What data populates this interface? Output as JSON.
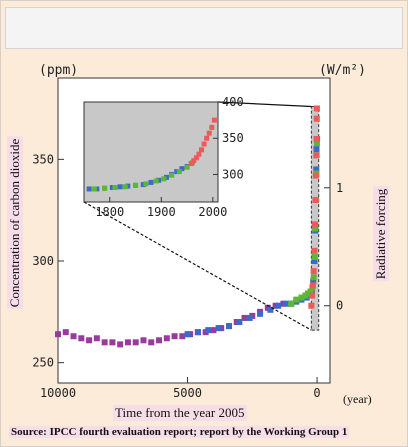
{
  "chart_data": {
    "type": "scatter",
    "left_unit": "(ppm)",
    "right_unit": "(W/m²)",
    "ylabel": "Concentration of carbon dioxide",
    "ylabel_right": "Radiative forcing",
    "xlabel": "Time from the year 2005",
    "xunit": "(year)",
    "source": "Source: IPCC fourth evaluation report; report by the Working Group 1",
    "xlim": [
      10000,
      -500
    ],
    "ylim": [
      240,
      390
    ],
    "x_ticks": [
      10000,
      5000,
      0
    ],
    "x_tick_labels": [
      "10000",
      "5000",
      "0"
    ],
    "y_ticks": [
      250,
      300,
      350
    ],
    "y_tick_labels": [
      "250",
      "300",
      "350"
    ],
    "y_right_ticks": [
      {
        "label": "0",
        "ppm": 278
      },
      {
        "label": "1",
        "ppm": 336
      }
    ],
    "colors": {
      "purple": "#9a3a9e",
      "blue": "#3c6ac8",
      "green": "#5cb832",
      "red": "#ee5a5a",
      "inset_bg": "#c8c8c8"
    },
    "series": [
      {
        "color_key": "purple",
        "points": [
          [
            10000,
            264
          ],
          [
            9700,
            265
          ],
          [
            9400,
            263
          ],
          [
            9100,
            262
          ],
          [
            8800,
            261
          ],
          [
            8500,
            262
          ],
          [
            8200,
            260
          ],
          [
            7900,
            260
          ],
          [
            7600,
            259
          ],
          [
            7300,
            260
          ],
          [
            7000,
            260
          ],
          [
            6700,
            261
          ],
          [
            6400,
            260
          ],
          [
            6100,
            261
          ],
          [
            5800,
            262
          ],
          [
            5500,
            263
          ],
          [
            5200,
            263
          ],
          [
            4900,
            264
          ],
          [
            4600,
            265
          ],
          [
            4300,
            265
          ],
          [
            4000,
            266
          ],
          [
            3700,
            267
          ],
          [
            3400,
            268
          ],
          [
            3100,
            270
          ],
          [
            2800,
            272
          ],
          [
            2500,
            273
          ],
          [
            2200,
            275
          ],
          [
            1900,
            277
          ],
          [
            1600,
            278
          ],
          [
            1300,
            279
          ],
          [
            1000,
            279
          ]
        ]
      },
      {
        "color_key": "blue",
        "points": [
          [
            5000,
            264
          ],
          [
            4600,
            265
          ],
          [
            4200,
            266
          ],
          [
            3800,
            267
          ],
          [
            3400,
            268
          ],
          [
            3000,
            270
          ],
          [
            2600,
            272
          ],
          [
            2200,
            274
          ],
          [
            1800,
            276
          ],
          [
            1500,
            278
          ],
          [
            1200,
            279
          ],
          [
            1000,
            279
          ],
          [
            800,
            280
          ],
          [
            600,
            281
          ],
          [
            400,
            282
          ],
          [
            300,
            283
          ],
          [
            200,
            285
          ],
          [
            150,
            290
          ],
          [
            100,
            300
          ],
          [
            70,
            315
          ],
          [
            50,
            330
          ],
          [
            30,
            345
          ],
          [
            20,
            355
          ],
          [
            0,
            360
          ]
        ]
      },
      {
        "color_key": "green",
        "points": [
          [
            1000,
            279
          ],
          [
            800,
            281
          ],
          [
            600,
            282
          ],
          [
            450,
            283
          ],
          [
            350,
            284
          ],
          [
            250,
            285
          ],
          [
            180,
            287
          ],
          [
            130,
            292
          ],
          [
            90,
            302
          ],
          [
            60,
            316
          ],
          [
            40,
            330
          ],
          [
            25,
            343
          ],
          [
            15,
            352
          ],
          [
            5,
            358
          ]
        ]
      },
      {
        "color_key": "red",
        "points": [
          [
            220,
            278
          ],
          [
            190,
            283
          ],
          [
            160,
            288
          ],
          [
            130,
            295
          ],
          [
            100,
            305
          ],
          [
            80,
            318
          ],
          [
            60,
            330
          ],
          [
            45,
            342
          ],
          [
            30,
            352
          ],
          [
            20,
            360
          ],
          [
            10,
            370
          ],
          [
            5,
            375
          ]
        ]
      }
    ],
    "inset": {
      "xlim": [
        1750,
        2010
      ],
      "ylim": [
        262,
        400
      ],
      "x_ticks": [
        1800,
        1900,
        2000
      ],
      "x_tick_labels": [
        "1800",
        "1900",
        "2000"
      ],
      "y_ticks": [
        300,
        350,
        400
      ],
      "y_tick_labels": [
        "300",
        "350",
        "400"
      ],
      "series": [
        {
          "color_key": "blue",
          "points": [
            [
              1760,
              280
            ],
            [
              1775,
              280
            ],
            [
              1790,
              281
            ],
            [
              1805,
              282
            ],
            [
              1820,
              283
            ],
            [
              1835,
              284
            ],
            [
              1850,
              285
            ],
            [
              1865,
              286
            ],
            [
              1880,
              289
            ],
            [
              1895,
              292
            ],
            [
              1910,
              296
            ],
            [
              1920,
              300
            ],
            [
              1930,
              304
            ],
            [
              1940,
              308
            ],
            [
              1950,
              311
            ]
          ]
        },
        {
          "color_key": "green",
          "points": [
            [
              1770,
              280
            ],
            [
              1790,
              281
            ],
            [
              1810,
              282
            ],
            [
              1830,
              283
            ],
            [
              1850,
              285
            ],
            [
              1870,
              287
            ],
            [
              1890,
              291
            ],
            [
              1905,
              294
            ],
            [
              1920,
              299
            ],
            [
              1935,
              304
            ],
            [
              1950,
              310
            ],
            [
              1960,
              316
            ]
          ]
        },
        {
          "color_key": "red",
          "points": [
            [
              1958,
              315
            ],
            [
              1963,
              319
            ],
            [
              1968,
              323
            ],
            [
              1973,
              328
            ],
            [
              1978,
              334
            ],
            [
              1983,
              342
            ],
            [
              1988,
              350
            ],
            [
              1993,
              357
            ],
            [
              1998,
              365
            ],
            [
              2003,
              375
            ]
          ]
        }
      ]
    }
  }
}
